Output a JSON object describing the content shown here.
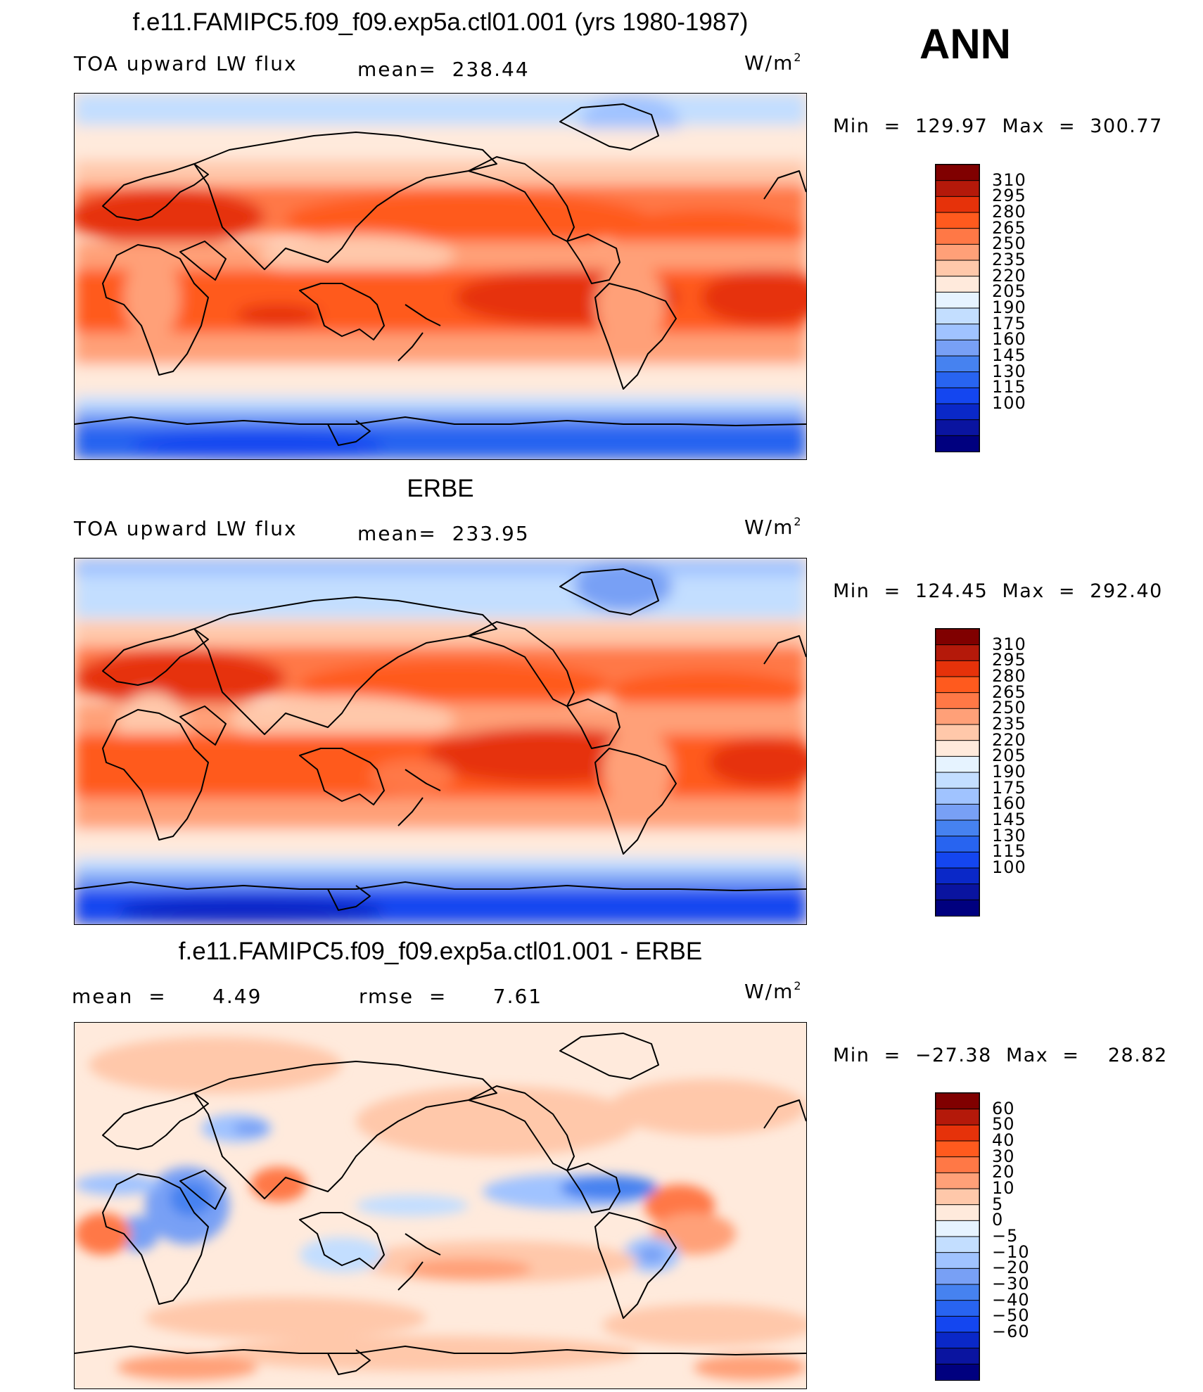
{
  "season": "ANN",
  "colors": {
    "abs": [
      "#00007f",
      "#0a14a0",
      "#0a28c8",
      "#1446f0",
      "#2864f0",
      "#4682f0",
      "#78a0f5",
      "#a0c3ff",
      "#c3deff",
      "#e6f3ff",
      "#ffeadc",
      "#ffc8aa",
      "#ffa078",
      "#ff7846",
      "#ff5a1e",
      "#e6320a",
      "#b4190a",
      "#800000"
    ],
    "diff": [
      "#00007f",
      "#0a14a0",
      "#0a28c8",
      "#1446f0",
      "#2864f0",
      "#4682f0",
      "#78a0f5",
      "#a0c3ff",
      "#c3deff",
      "#e6f3ff",
      "#ffeadc",
      "#ffc8aa",
      "#ffa078",
      "#ff7846",
      "#ff5a1e",
      "#e6320a",
      "#b4190a",
      "#800000"
    ]
  },
  "panels": [
    {
      "title": "f.e11.FAMIPC5.f09_f09.exp5a.ctl01.001 (yrs 1980-1987)",
      "left_label": "TOA upward LW flux",
      "center_label": "mean=  238.44",
      "units": "W/m",
      "units_sup": "2",
      "minmax": "Min  =  129.97  Max  =  300.77"
    },
    {
      "title": "ERBE",
      "left_label": "TOA upward LW flux",
      "center_label": "mean=  233.95",
      "units": "W/m",
      "units_sup": "2",
      "minmax": "Min  =  124.45  Max  =  292.40"
    },
    {
      "title": "f.e11.FAMIPC5.f09_f09.exp5a.ctl01.001 - ERBE",
      "left_label": "mean  =      4.49",
      "center_label": "rmse  =      7.61",
      "units": "W/m",
      "units_sup": "2",
      "minmax": "Min  =  −27.38  Max  =    28.82"
    }
  ],
  "colorbars": {
    "abs_ticks": [
      "310",
      "295",
      "280",
      "265",
      "250",
      "235",
      "220",
      "205",
      "190",
      "175",
      "160",
      "145",
      "130",
      "115",
      "100"
    ],
    "diff_ticks": [
      "60",
      "50",
      "40",
      "30",
      "20",
      "10",
      "5",
      "0",
      "−5",
      "−10",
      "−20",
      "−30",
      "−40",
      "−50",
      "−60"
    ]
  }
}
